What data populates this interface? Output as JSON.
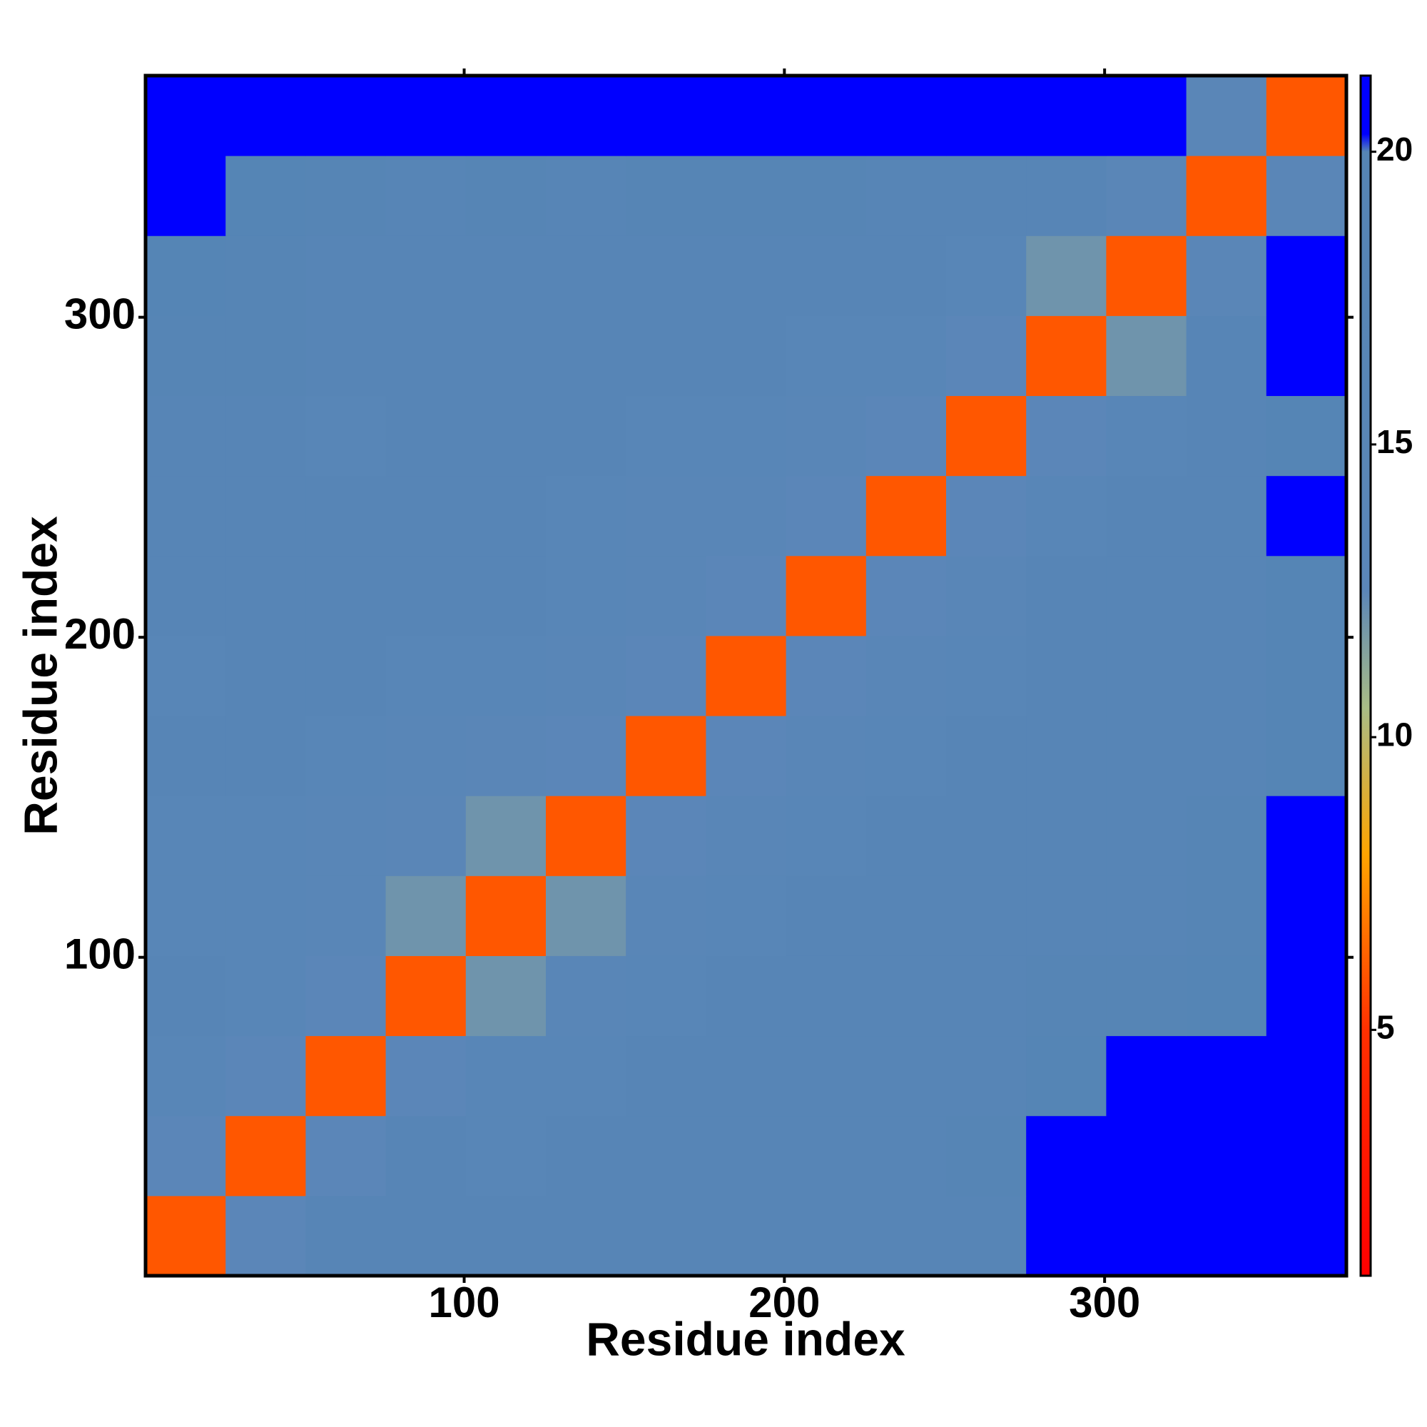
{
  "chart_data": {
    "type": "heatmap",
    "xlabel": "Residue index",
    "ylabel": "Residue index",
    "xlim": [
      0.5,
      375.5
    ],
    "ylim": [
      0.5,
      375.5
    ],
    "xticks": [
      100,
      200,
      300
    ],
    "yticks": [
      100,
      200,
      300
    ],
    "xbins": [
      0.5,
      25.5,
      50.5,
      75.5,
      100.5,
      125.5,
      150.5,
      175.5,
      200.5,
      225.5,
      250.5,
      275.5,
      300.5,
      325.5,
      350.5,
      375.5
    ],
    "ybins": [
      0.5,
      25.5,
      50.5,
      75.5,
      100.5,
      125.5,
      150.5,
      175.5,
      200.5,
      225.5,
      250.5,
      275.5,
      300.5,
      325.5,
      350.5,
      375.5
    ],
    "z": [
      [
        6,
        13,
        17,
        17,
        17,
        17,
        17,
        17,
        17,
        17,
        18,
        20.5,
        20.5,
        20.5,
        20.5
      ],
      [
        13,
        6,
        13,
        17,
        16,
        17,
        17,
        17,
        17,
        17,
        19,
        20.5,
        20.5,
        20.5,
        20.5
      ],
      [
        16,
        13,
        6,
        13,
        16,
        16,
        17,
        17,
        17,
        18,
        18,
        20,
        20.5,
        20.5,
        20.5
      ],
      [
        17,
        16,
        13,
        6,
        12,
        15,
        16,
        17,
        17,
        17,
        17,
        19,
        19,
        20,
        20.5
      ],
      [
        16,
        16,
        15,
        12,
        6,
        12,
        15,
        16,
        17,
        17,
        17,
        18,
        18,
        19,
        20.5
      ],
      [
        16,
        16,
        15,
        14,
        12,
        6,
        13,
        15,
        16,
        17,
        17,
        17,
        17,
        19,
        20.5
      ],
      [
        17,
        17,
        16,
        15,
        14,
        13,
        6,
        13,
        15,
        16,
        17,
        17,
        17,
        18,
        20
      ],
      [
        16,
        17,
        17,
        16,
        16,
        15,
        13,
        6,
        13,
        15,
        16,
        17,
        17,
        18,
        20
      ],
      [
        17,
        17,
        17,
        17,
        17,
        16,
        15,
        13,
        6,
        13,
        15,
        17,
        17,
        18,
        20
      ],
      [
        18,
        17,
        17,
        17,
        17,
        16,
        15,
        15,
        13,
        6,
        13,
        16,
        17,
        18,
        20.5
      ],
      [
        17,
        17,
        16,
        17,
        17,
        17,
        16,
        16,
        15,
        13,
        6,
        13,
        16,
        18,
        20
      ],
      [
        19,
        19,
        18,
        17,
        18,
        17,
        17,
        17,
        16,
        16,
        13,
        6,
        12,
        17,
        20.5
      ],
      [
        20,
        19,
        17,
        17,
        18,
        17,
        18,
        17,
        17,
        17,
        16,
        12,
        6,
        14,
        20.5
      ],
      [
        20.5,
        20,
        19,
        18,
        19,
        18,
        19,
        19,
        19,
        18,
        18,
        17,
        14,
        6,
        14
      ],
      [
        20.5,
        20.5,
        20.5,
        20.5,
        20.5,
        20.5,
        20.5,
        20.5,
        20.5,
        20.5,
        20.5,
        20.5,
        20.5,
        14,
        6
      ]
    ],
    "clim": [
      0.8,
      21.3
    ],
    "cticks": [
      5,
      10,
      15,
      20
    ],
    "colorscale": [
      [
        0.8,
        "#ff0000"
      ],
      [
        5,
        "#ff3000"
      ],
      [
        8,
        "#ffa500"
      ],
      [
        10.5,
        "#a9bc86"
      ],
      [
        12.5,
        "#5b86b8"
      ],
      [
        20,
        "#5585b5"
      ],
      [
        20.3,
        "#0000ff"
      ],
      [
        21.3,
        "#0000ff"
      ]
    ]
  }
}
